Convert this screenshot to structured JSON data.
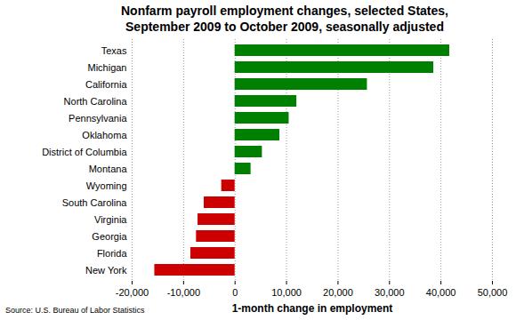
{
  "chart_data": {
    "type": "bar",
    "title": "Nonfarm payroll employment changes, selected States,\nSeptember 2009 to October 2009, seasonally adjusted",
    "caption": "Source: U.S. Bureau of Labor Statistics",
    "x_label": "1-month change in employment",
    "orientation": "horizontal",
    "categories": [
      "Texas",
      "Michigan",
      "California",
      "North Carolina",
      "Pennsylvania",
      "Oklahoma",
      "District of Columbia",
      "Montana",
      "Wyoming",
      "South Carolina",
      "Virginia",
      "Georgia",
      "Florida",
      "New York"
    ],
    "values": [
      41700,
      38600,
      25700,
      12000,
      10500,
      8700,
      5300,
      3100,
      -2600,
      -6000,
      -7200,
      -7500,
      -8600,
      -15600
    ],
    "colors": [
      "#008000",
      "#008000",
      "#008000",
      "#008000",
      "#008000",
      "#008000",
      "#008000",
      "#008000",
      "#cc0000",
      "#cc0000",
      "#cc0000",
      "#cc0000",
      "#cc0000",
      "#cc0000"
    ],
    "xlim": [
      -20000,
      50000
    ],
    "xticks": [
      {
        "value": -20000,
        "label": "-20,000"
      },
      {
        "value": -10000,
        "label": "-10,000"
      },
      0,
      {
        "value": 10000,
        "label": "10,000"
      },
      {
        "value": 20000,
        "label": "20,000"
      },
      {
        "value": 30000,
        "label": "30,000"
      },
      {
        "value": 40000,
        "label": "40,000"
      },
      {
        "value": 50000,
        "label": "50,000"
      }
    ],
    "grid": true
  }
}
